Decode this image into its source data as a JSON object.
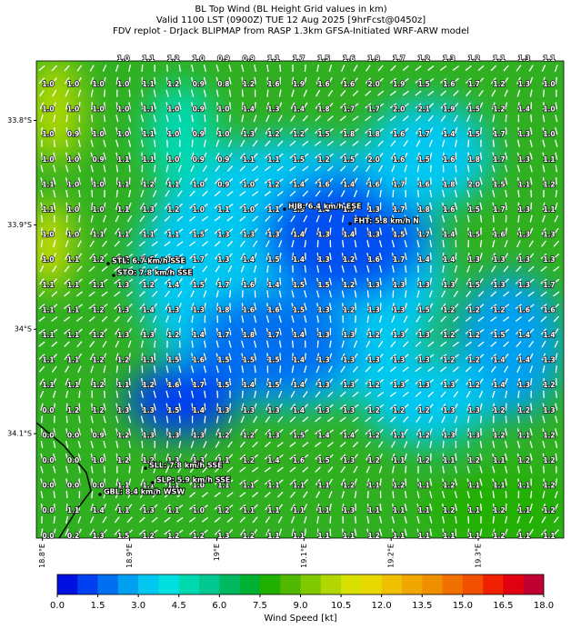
{
  "map": {
    "title_lines": [
      "BL Top Wind (BL Height Grid values in km)",
      "Valid 1100 LST (0900Z) TUE 12 Aug 2025 [9hrFcst@0450z]",
      "FDV replot - DrJack BLIPMAP from RASP 1.3km GFSA-Initiated WRF-ARW model"
    ],
    "lonlim": [
      18.793,
      19.398
    ],
    "latlim": [
      33.743,
      34.2
    ],
    "lon_ticks": [
      {
        "value": 18.8,
        "label": "18.8°E"
      },
      {
        "value": 18.9,
        "label": "18.9°E"
      },
      {
        "value": 19.0,
        "label": "19°E"
      },
      {
        "value": 19.1,
        "label": "19.1°E"
      },
      {
        "value": 19.2,
        "label": "19.2°E"
      },
      {
        "value": 19.3,
        "label": "19.3°E"
      }
    ],
    "lat_ticks": [
      {
        "value": 33.8,
        "label": "33.8°S"
      },
      {
        "value": 33.9,
        "label": "33.9°S"
      },
      {
        "value": 34.0,
        "label": "34°S"
      },
      {
        "value": 34.1,
        "label": "34.1°S"
      }
    ],
    "grid_top_row": [
      "1.0",
      "1.1",
      "1.2",
      "1.0",
      "0.9",
      "0.9",
      "1.1",
      "1.7",
      "1.5",
      "1.6",
      "1.9",
      "1.7",
      "1.2",
      "1.3",
      "1.2",
      "1.1",
      "1.3",
      "1.1"
    ],
    "grid_rows": [
      [
        "1.0",
        "1.0",
        "1.0",
        "1.0",
        "1.1",
        "1.2",
        "0.9",
        "0.8",
        "1.2",
        "1.6",
        "1.9",
        "1.6",
        "1.6",
        "2.0",
        "1.9",
        "1.5",
        "1.6",
        "1.7",
        "1.2",
        "1.3",
        "1.0"
      ],
      [
        "1.0",
        "1.0",
        "1.0",
        "1.0",
        "1.1",
        "1.0",
        "0.9",
        "1.0",
        "1.4",
        "1.3",
        "1.4",
        "1.8",
        "1.7",
        "1.7",
        "2.0",
        "2.1",
        "1.9",
        "1.5",
        "1.2",
        "1.4",
        "1.0"
      ],
      [
        "1.0",
        "0.9",
        "1.0",
        "1.0",
        "1.1",
        "1.0",
        "0.9",
        "1.0",
        "1.3",
        "1.2",
        "1.2",
        "1.5",
        "1.8",
        "1.8",
        "1.6",
        "1.7",
        "1.4",
        "1.5",
        "1.7",
        "1.3",
        "1.0"
      ],
      [
        "1.0",
        "1.0",
        "0.9",
        "1.1",
        "1.1",
        "1.0",
        "0.9",
        "0.9",
        "1.1",
        "1.1",
        "1.5",
        "1.2",
        "1.5",
        "2.0",
        "1.6",
        "1.5",
        "1.6",
        "1.8",
        "1.7",
        "1.3",
        "1.1"
      ],
      [
        "1.1",
        "1.0",
        "1.0",
        "1.1",
        "1.2",
        "1.1",
        "1.0",
        "0.9",
        "1.0",
        "1.2",
        "1.4",
        "1.6",
        "1.4",
        "1.6",
        "1.7",
        "1.6",
        "1.8",
        "2.0",
        "1.5",
        "1.1",
        "1.2"
      ],
      [
        "1.1",
        "1.0",
        "1.0",
        "1.1",
        "1.3",
        "1.2",
        "1.0",
        "1.1",
        "1.0",
        "1.1",
        "1.3",
        "1.4",
        "1.5",
        "1.3",
        "1.7",
        "1.8",
        "1.6",
        "1.5",
        "1.7",
        "1.3",
        "1.1"
      ],
      [
        "1.0",
        "1.0",
        "1.1",
        "1.1",
        "1.1",
        "1.1",
        "1.5",
        "1.3",
        "1.3",
        "1.3",
        "1.4",
        "1.3",
        "1.4",
        "1.3",
        "1.5",
        "1.7",
        "1.4",
        "1.5",
        "1.6",
        "1.3",
        "1.3"
      ],
      [
        "1.0",
        "1.1",
        "1.2",
        "1.3",
        "1.5",
        "1.5",
        "1.7",
        "1.3",
        "1.4",
        "1.5",
        "1.4",
        "1.3",
        "1.2",
        "1.6",
        "1.7",
        "1.4",
        "1.4",
        "1.3",
        "1.3",
        "1.3",
        "1.3"
      ],
      [
        "1.1",
        "1.1",
        "1.1",
        "1.3",
        "1.2",
        "1.4",
        "1.5",
        "1.7",
        "1.6",
        "1.4",
        "1.5",
        "1.5",
        "1.2",
        "1.3",
        "1.3",
        "1.3",
        "1.3",
        "1.5",
        "1.3",
        "1.3",
        "1.7"
      ],
      [
        "1.1",
        "1.1",
        "1.2",
        "1.3",
        "1.4",
        "1.3",
        "1.3",
        "1.8",
        "1.6",
        "1.6",
        "1.5",
        "1.3",
        "1.2",
        "1.3",
        "1.3",
        "1.5",
        "1.2",
        "1.2",
        "1.2",
        "1.6",
        "1.6"
      ],
      [
        "1.1",
        "1.1",
        "1.2",
        "1.3",
        "1.3",
        "1.2",
        "1.4",
        "1.7",
        "1.8",
        "1.7",
        "1.4",
        "1.3",
        "1.3",
        "1.2",
        "1.3",
        "1.3",
        "1.2",
        "1.2",
        "1.5",
        "1.4",
        "1.4"
      ],
      [
        "1.1",
        "1.1",
        "1.2",
        "1.2",
        "1.1",
        "1.5",
        "1.6",
        "1.5",
        "1.5",
        "1.5",
        "1.4",
        "1.3",
        "1.3",
        "1.3",
        "1.3",
        "1.3",
        "1.2",
        "1.2",
        "1.4",
        "1.4",
        "1.3"
      ],
      [
        "1.1",
        "1.1",
        "1.2",
        "1.1",
        "1.2",
        "1.6",
        "1.7",
        "1.5",
        "1.4",
        "1.5",
        "1.4",
        "1.3",
        "1.3",
        "1.2",
        "1.3",
        "1.3",
        "1.3",
        "1.2",
        "1.4",
        "1.3",
        "1.2"
      ],
      [
        "0.0",
        "1.2",
        "1.2",
        "1.3",
        "1.3",
        "1.5",
        "1.4",
        "1.3",
        "1.3",
        "1.3",
        "1.4",
        "1.3",
        "1.3",
        "1.2",
        "1.2",
        "1.2",
        "1.3",
        "1.3",
        "1.2",
        "1.2",
        "1.3"
      ],
      [
        "0.0",
        "0.0",
        "0.9",
        "1.2",
        "1.3",
        "1.3",
        "1.3",
        "1.2",
        "1.2",
        "1.3",
        "1.5",
        "1.4",
        "1.4",
        "1.2",
        "1.1",
        "1.2",
        "1.3",
        "1.3",
        "1.2",
        "1.1",
        "1.2"
      ],
      [
        "0.0",
        "0.0",
        "1.0",
        "1.2",
        "1.2",
        "1.3",
        "1.3",
        "1.1",
        "1.2",
        "1.4",
        "1.6",
        "1.5",
        "1.3",
        "1.2",
        "1.1",
        "1.2",
        "1.1",
        "1.2",
        "1.1",
        "1.2",
        "1.2"
      ],
      [
        "0.0",
        "0.0",
        "0.0",
        "1.1",
        "1.1",
        "1.1",
        "1.0",
        "1.1",
        "1.1",
        "1.1",
        "1.1",
        "1.1",
        "1.2",
        "1.1",
        "1.2",
        "1.1",
        "1.2",
        "1.1",
        "1.1",
        "1.1",
        "1.2"
      ],
      [
        "0.0",
        "1.1",
        "1.4",
        "1.1",
        "1.3",
        "1.1",
        "1.0",
        "1.2",
        "1.1",
        "1.1",
        "1.1",
        "1.1",
        "1.3",
        "1.1",
        "1.1",
        "1.1",
        "1.2",
        "1.1",
        "1.2",
        "1.1",
        "1.2"
      ],
      [
        "0.0",
        "0.2",
        "1.3",
        "1.5",
        "1.2",
        "1.2",
        "1.2",
        "1.3",
        "1.2",
        "1.1",
        "1.1",
        "1.1",
        "1.1",
        "1.2",
        "1.1",
        "1.1",
        "1.1",
        "1.1",
        "1.2",
        "1.1",
        "1.1"
      ]
    ],
    "stations": [
      "HJB: 6.4 km/h ESE",
      "FHT: 5.8 km/h N",
      "STL: 6.7 km/h SSE",
      "STO: 7.8 km/h SSE",
      "SLL: 7.8 km/h SSE",
      "SLP: 5.9 km/h SSE",
      "GBL: 8.4 km/h WSW"
    ],
    "colorbar": {
      "label": "Wind Speed [kt]",
      "lim": [
        0,
        18
      ],
      "ticks": [
        {
          "value": 0,
          "label": "0.0"
        },
        {
          "value": 1.5,
          "label": "1.5"
        },
        {
          "value": 3,
          "label": "3.0"
        },
        {
          "value": 4.5,
          "label": "4.5"
        },
        {
          "value": 6,
          "label": "6.0"
        },
        {
          "value": 7.5,
          "label": "7.5"
        },
        {
          "value": 9,
          "label": "9.0"
        },
        {
          "value": 10.5,
          "label": "10.5"
        },
        {
          "value": 12,
          "label": "12.0"
        },
        {
          "value": 13.5,
          "label": "13.5"
        },
        {
          "value": 15,
          "label": "15.0"
        },
        {
          "value": 16.5,
          "label": "16.5"
        },
        {
          "value": 18,
          "label": "18.0"
        }
      ],
      "colors": [
        "#0010e0",
        "#0040f0",
        "#0070f0",
        "#00a0f0",
        "#00c8f0",
        "#00e0e0",
        "#00d8b0",
        "#00c890",
        "#00b860",
        "#00b030",
        "#20b000",
        "#50b800",
        "#80c800",
        "#b0d800",
        "#d8e000",
        "#e8d800",
        "#f0c000",
        "#f0a800",
        "#f09000",
        "#f07000",
        "#f05000",
        "#f02000",
        "#e00010",
        "#c00030"
      ]
    }
  }
}
